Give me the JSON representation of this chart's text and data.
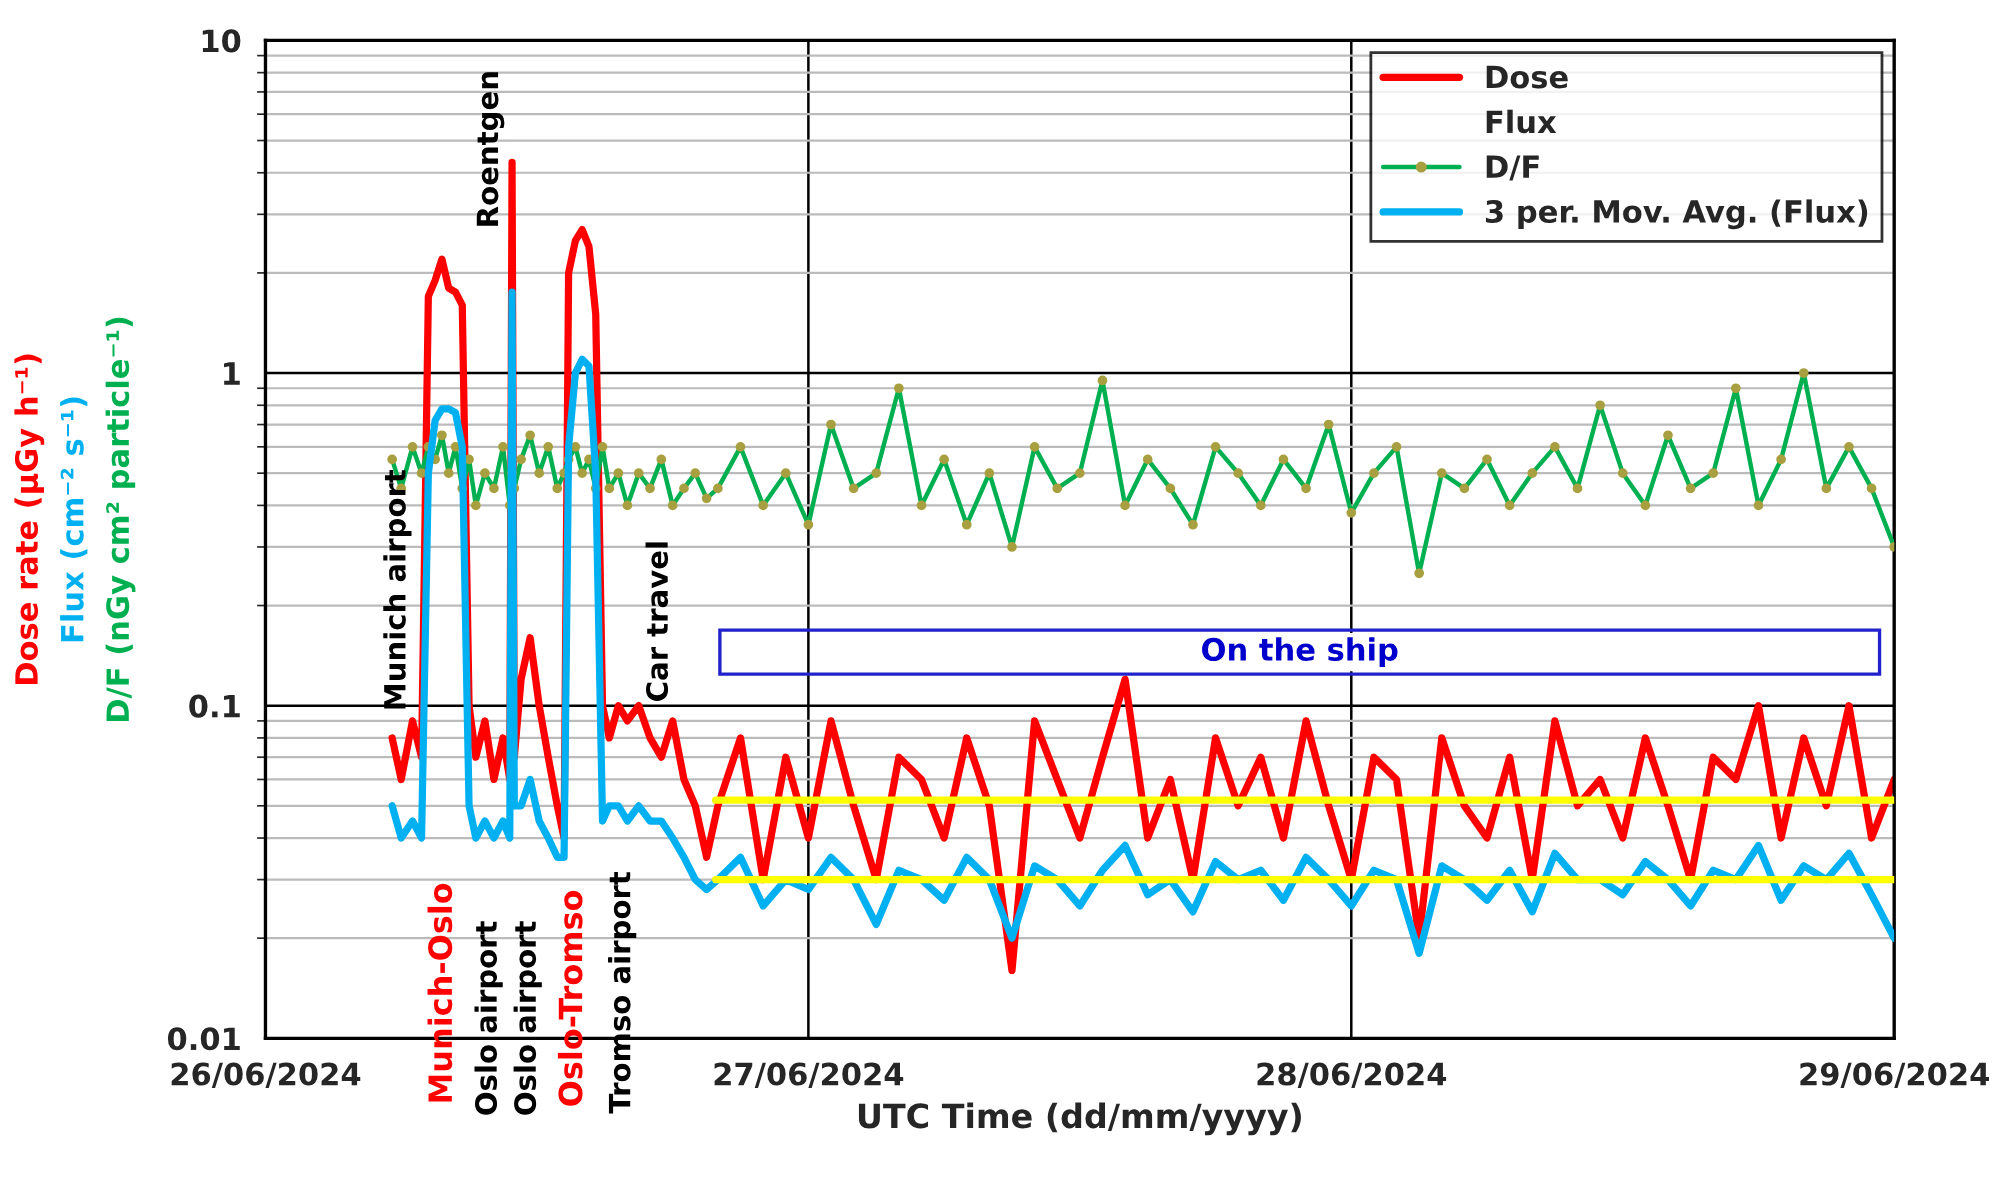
{
  "chart_data": {
    "type": "line",
    "xlabel": "UTC Time (dd/mm/yyyy)",
    "ylabel": "Dose rate (µGy h⁻¹)\nFlux (cm⁻² s⁻¹)\nD/F (nGy cm² particle⁻¹)",
    "x": [
      "2024-06-26T05:36",
      "2024-06-26T06:00",
      "2024-06-26T06:30",
      "2024-06-26T06:54",
      "2024-06-26T07:12",
      "2024-06-26T07:30",
      "2024-06-26T07:48",
      "2024-06-26T08:06",
      "2024-06-26T08:24",
      "2024-06-26T08:42",
      "2024-06-26T09:00",
      "2024-06-26T09:18",
      "2024-06-26T09:42",
      "2024-06-26T10:06",
      "2024-06-26T10:30",
      "2024-06-26T10:48",
      "2024-06-26T10:54",
      "2024-06-26T11:00",
      "2024-06-26T11:18",
      "2024-06-26T11:42",
      "2024-06-26T12:06",
      "2024-06-26T12:30",
      "2024-06-26T12:54",
      "2024-06-26T13:12",
      "2024-06-26T13:24",
      "2024-06-26T13:42",
      "2024-06-26T14:00",
      "2024-06-26T14:18",
      "2024-06-26T14:36",
      "2024-06-26T14:54",
      "2024-06-26T15:12",
      "2024-06-26T15:36",
      "2024-06-26T16:00",
      "2024-06-26T16:30",
      "2024-06-26T17:00",
      "2024-06-26T17:30",
      "2024-06-26T18:00",
      "2024-06-26T18:30",
      "2024-06-26T19:00",
      "2024-06-26T19:30",
      "2024-06-26T20:00",
      "2024-06-26T21:00",
      "2024-06-26T22:00",
      "2024-06-26T23:00",
      "2024-06-27T00:00",
      "2024-06-27T01:00",
      "2024-06-27T02:00",
      "2024-06-27T03:00",
      "2024-06-27T04:00",
      "2024-06-27T05:00",
      "2024-06-27T06:00",
      "2024-06-27T07:00",
      "2024-06-27T08:00",
      "2024-06-27T09:00",
      "2024-06-27T10:00",
      "2024-06-27T11:00",
      "2024-06-27T12:00",
      "2024-06-27T13:00",
      "2024-06-27T14:00",
      "2024-06-27T15:00",
      "2024-06-27T16:00",
      "2024-06-27T17:00",
      "2024-06-27T18:00",
      "2024-06-27T19:00",
      "2024-06-27T20:00",
      "2024-06-27T21:00",
      "2024-06-27T22:00",
      "2024-06-27T23:00",
      "2024-06-28T00:00",
      "2024-06-28T01:00",
      "2024-06-28T02:00",
      "2024-06-28T03:00",
      "2024-06-28T04:00",
      "2024-06-28T05:00",
      "2024-06-28T06:00",
      "2024-06-28T07:00",
      "2024-06-28T08:00",
      "2024-06-28T09:00",
      "2024-06-28T10:00",
      "2024-06-28T11:00",
      "2024-06-28T12:00",
      "2024-06-28T13:00",
      "2024-06-28T14:00",
      "2024-06-28T15:00",
      "2024-06-28T16:00",
      "2024-06-28T17:00",
      "2024-06-28T18:00",
      "2024-06-28T19:00",
      "2024-06-28T20:00",
      "2024-06-28T21:00",
      "2024-06-28T22:00",
      "2024-06-28T23:00",
      "2024-06-29T00:00"
    ],
    "series": [
      {
        "name": "Dose",
        "color": "#ff0000",
        "values": [
          0.08,
          0.06,
          0.09,
          0.07,
          1.7,
          1.9,
          2.2,
          1.8,
          1.75,
          1.6,
          0.1,
          0.07,
          0.09,
          0.06,
          0.08,
          0.06,
          4.3,
          0.07,
          0.12,
          0.16,
          0.1,
          0.07,
          0.05,
          0.04,
          2.0,
          2.5,
          2.7,
          2.4,
          1.5,
          0.1,
          0.08,
          0.1,
          0.09,
          0.1,
          0.08,
          0.07,
          0.09,
          0.06,
          0.05,
          0.035,
          0.05,
          0.08,
          0.03,
          0.07,
          0.04,
          0.09,
          0.05,
          0.03,
          0.07,
          0.06,
          0.04,
          0.08,
          0.05,
          0.016,
          0.09,
          0.06,
          0.04,
          0.07,
          0.12,
          0.04,
          0.06,
          0.03,
          0.08,
          0.05,
          0.07,
          0.04,
          0.09,
          0.05,
          0.03,
          0.07,
          0.06,
          0.02,
          0.08,
          0.05,
          0.04,
          0.07,
          0.03,
          0.09,
          0.05,
          0.06,
          0.04,
          0.08,
          0.05,
          0.03,
          0.07,
          0.06,
          0.1,
          0.04,
          0.08,
          0.05,
          0.1,
          0.04,
          0.06
        ]
      },
      {
        "name": "Flux",
        "values": [
          null,
          null,
          null,
          null,
          null,
          null,
          null,
          null,
          null,
          null,
          null,
          null,
          null,
          null,
          null,
          null,
          null,
          null,
          null,
          null,
          null,
          null,
          null,
          null,
          null,
          null,
          null,
          null,
          null,
          null,
          null,
          null,
          null,
          null,
          null,
          null,
          null,
          null,
          null,
          null,
          null,
          null,
          null,
          null,
          null,
          null,
          null,
          null,
          null,
          null,
          null,
          null,
          null,
          null,
          null,
          null,
          null,
          null,
          null,
          null,
          null,
          null,
          null,
          null,
          null,
          null,
          null,
          null,
          null,
          null,
          null,
          null,
          null,
          null,
          null,
          null,
          null,
          null,
          null,
          null,
          null,
          null,
          null,
          null,
          null,
          null,
          null,
          null,
          null,
          null,
          null,
          null,
          null
        ]
      },
      {
        "name": "D/F",
        "color": "#00b050",
        "marker": "circle",
        "values": [
          0.55,
          0.45,
          0.6,
          0.5,
          0.6,
          0.55,
          0.65,
          0.5,
          0.6,
          0.45,
          0.55,
          0.4,
          0.5,
          0.45,
          0.6,
          0.4,
          0.5,
          0.45,
          0.55,
          0.65,
          0.5,
          0.6,
          0.45,
          0.5,
          0.55,
          0.6,
          0.5,
          0.55,
          0.45,
          0.6,
          0.45,
          0.5,
          0.4,
          0.5,
          0.45,
          0.55,
          0.4,
          0.45,
          0.5,
          0.42,
          0.45,
          0.6,
          0.4,
          0.5,
          0.35,
          0.7,
          0.45,
          0.5,
          0.9,
          0.4,
          0.55,
          0.35,
          0.5,
          0.3,
          0.6,
          0.45,
          0.5,
          0.95,
          0.4,
          0.55,
          0.45,
          0.35,
          0.6,
          0.5,
          0.4,
          0.55,
          0.45,
          0.7,
          0.38,
          0.5,
          0.6,
          0.25,
          0.5,
          0.45,
          0.55,
          0.4,
          0.5,
          0.6,
          0.45,
          0.8,
          0.5,
          0.4,
          0.65,
          0.45,
          0.5,
          0.9,
          0.4,
          0.55,
          1.0,
          0.45,
          0.6,
          0.45,
          0.3
        ]
      },
      {
        "name": "3 per. Mov. Avg. (Flux)",
        "color": "#00b0f0",
        "values": [
          0.05,
          0.04,
          0.045,
          0.04,
          0.5,
          0.72,
          0.78,
          0.78,
          0.76,
          0.6,
          0.05,
          0.04,
          0.045,
          0.04,
          0.045,
          0.04,
          1.75,
          0.05,
          0.05,
          0.06,
          0.045,
          0.04,
          0.035,
          0.035,
          0.6,
          1.0,
          1.1,
          1.05,
          0.5,
          0.045,
          0.05,
          0.05,
          0.045,
          0.05,
          0.045,
          0.045,
          0.04,
          0.035,
          0.03,
          0.028,
          0.03,
          0.035,
          0.025,
          0.03,
          0.028,
          0.035,
          0.03,
          0.022,
          0.032,
          0.03,
          0.026,
          0.035,
          0.03,
          0.02,
          0.033,
          0.03,
          0.025,
          0.032,
          0.038,
          0.027,
          0.03,
          0.024,
          0.034,
          0.03,
          0.032,
          0.026,
          0.035,
          0.03,
          0.025,
          0.032,
          0.03,
          0.018,
          0.033,
          0.03,
          0.026,
          0.032,
          0.024,
          0.036,
          0.03,
          0.03,
          0.027,
          0.034,
          0.03,
          0.025,
          0.032,
          0.03,
          0.038,
          0.026,
          0.033,
          0.03,
          0.036,
          0.027,
          0.02
        ]
      },
      {
        "color": "#ffff00",
        "x": [
          "2024-06-26T19:54",
          "2024-06-29T00:00"
        ],
        "values": [
          0.052,
          0.052
        ]
      },
      {
        "color": "#ffff00",
        "x": [
          "2024-06-26T19:54",
          "2024-06-29T00:00"
        ],
        "values": [
          0.03,
          0.03
        ]
      }
    ],
    "annotations": [
      "Munich airport",
      "Roentgen",
      "Car travel",
      "Munich-Oslo",
      "Oslo airport",
      "Oslo airport",
      "Oslo-Tromso",
      "Tromso airport",
      "On the ship"
    ],
    "log": "y",
    "ylim": [
      0.01,
      10
    ],
    "yticks": [
      0.01,
      0.1,
      1,
      10
    ],
    "xlim": [
      "2024-06-26",
      "2024-06-29"
    ],
    "xticks": [
      {
        "value": "2024-06-26",
        "label": "26/06/2024"
      },
      {
        "value": "2024-06-27",
        "label": "27/06/2024"
      },
      {
        "value": "2024-06-28",
        "label": "28/06/2024"
      },
      {
        "value": "2024-06-29",
        "label": "29/06/2024"
      }
    ],
    "grid": true,
    "legend": "top right",
    "line_style": "solid"
  }
}
